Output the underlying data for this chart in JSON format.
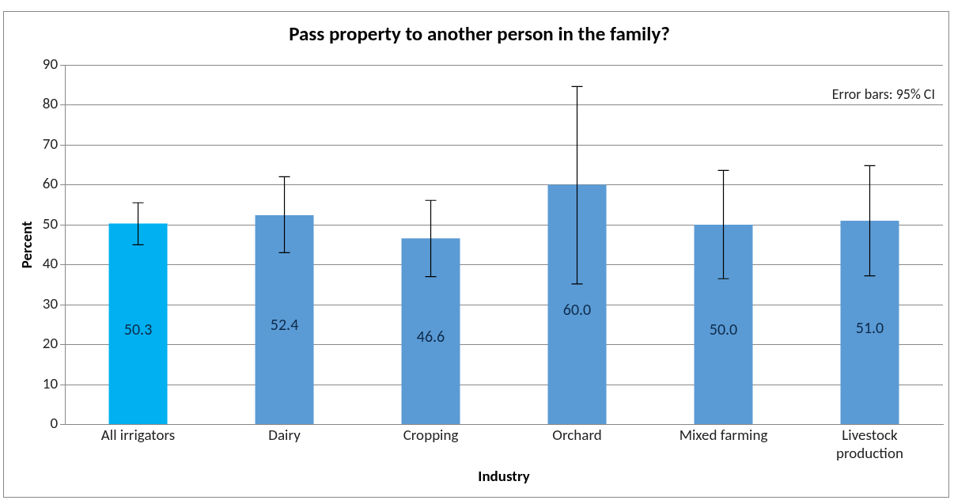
{
  "chart_data": {
    "type": "bar",
    "title": "Pass property to another person in the family?",
    "xlabel": "Industry",
    "ylabel": "Percent",
    "categories": [
      "All irrigators",
      "Dairy",
      "Cropping",
      "Orchard",
      "Mixed farming",
      "Livestock production"
    ],
    "values": [
      50.3,
      52.4,
      46.6,
      60.0,
      50.0,
      51.0
    ],
    "value_labels": [
      "50.3",
      "52.4",
      "46.6",
      "60.0",
      "50.0",
      "51.0"
    ],
    "colors": [
      "#00b0f0",
      "#5b9bd5",
      "#5b9bd5",
      "#5b9bd5",
      "#5b9bd5",
      "#5b9bd5"
    ],
    "errors": [
      [
        45.0,
        55.5
      ],
      [
        43.0,
        62.0
      ],
      [
        37.0,
        56.1
      ],
      [
        35.2,
        84.6
      ],
      [
        36.5,
        63.6
      ],
      [
        37.2,
        64.8
      ]
    ],
    "ylim": [
      0,
      90
    ],
    "yticks": [
      0,
      10,
      20,
      30,
      40,
      50,
      60,
      70,
      80,
      90
    ],
    "grid": "y",
    "legend": false,
    "annotations": [
      "Error bars: 95% CI"
    ]
  }
}
